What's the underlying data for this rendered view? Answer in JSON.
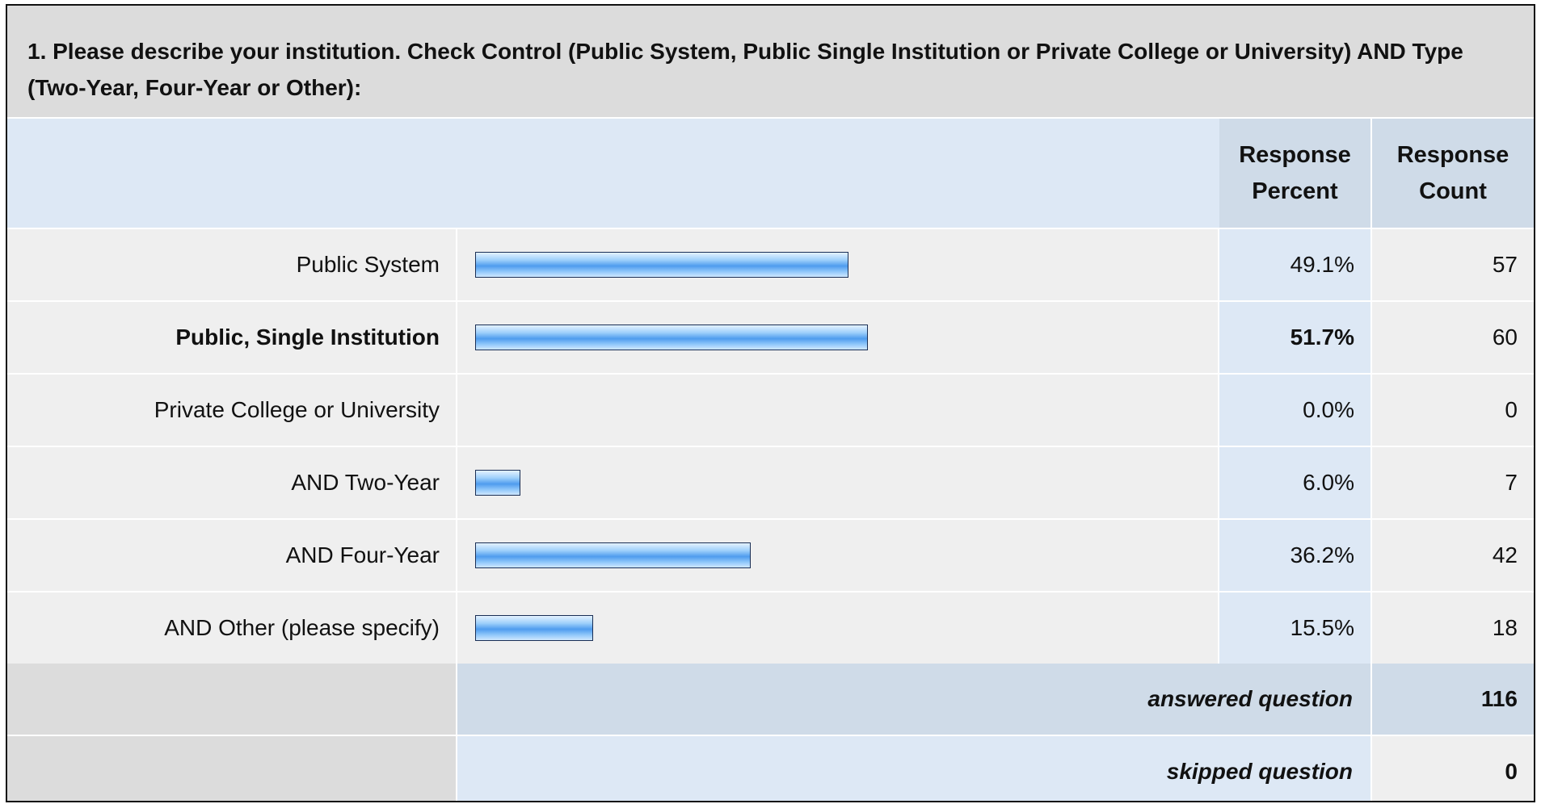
{
  "question": {
    "title": "1. Please describe your institution. Check Control (Public System, Public Single Institution or Private College or University) AND Type (Two-Year, Four-Year or Other):"
  },
  "table": {
    "header": {
      "percent_label": "Response Percent",
      "count_label": "Response Count"
    },
    "summary": {
      "answered_label": "answered question",
      "answered_value": "116",
      "skipped_label": "skipped question",
      "skipped_value": "0"
    }
  },
  "colors": {
    "bar_fill": "#4f9cee",
    "bar_border": "#1a2f55",
    "title_background": "#dcdcdc",
    "header_background": "#dde8f5"
  },
  "chart_data": {
    "type": "bar",
    "orientation": "horizontal",
    "categories": [
      "Public System",
      "Public, Single Institution",
      "Private College or University",
      "AND Two-Year",
      "AND Four-Year",
      "AND Other (please specify)"
    ],
    "series": [
      {
        "values": [
          49.1,
          51.7,
          0.0,
          6.0,
          36.2,
          15.5
        ],
        "labels": [
          "49.1%",
          "51.7%",
          "0.0%",
          "6.0%",
          "36.2%",
          "15.5%"
        ]
      }
    ],
    "counts": [
      "57",
      "60",
      "0",
      "7",
      "42",
      "18"
    ],
    "highlight_index": 1,
    "xlim": [
      0,
      100
    ],
    "grid": false,
    "legend": "none"
  }
}
